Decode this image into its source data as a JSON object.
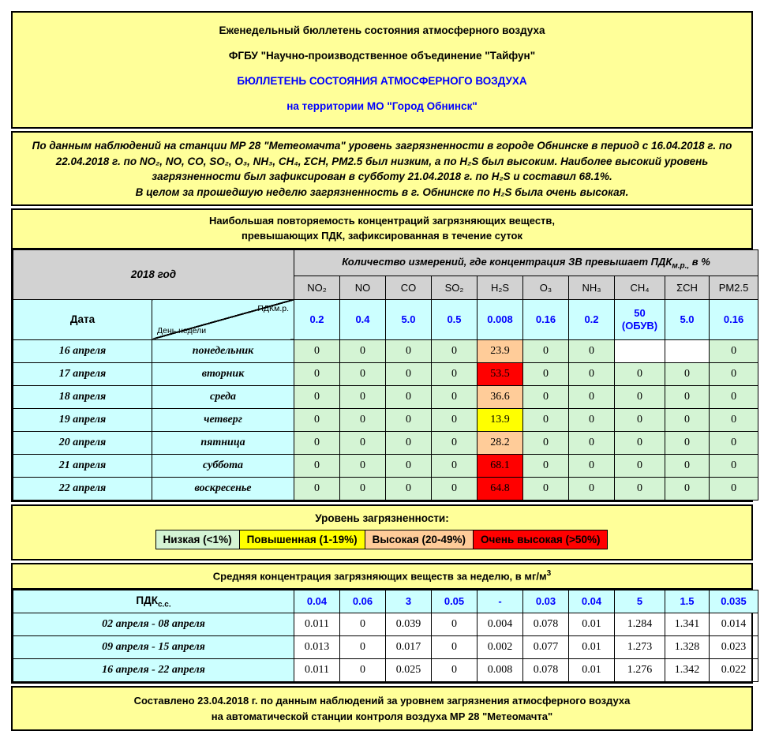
{
  "colors": {
    "page_yellow": "#ffff99",
    "header_gray": "#d2d2d2",
    "label_cyan": "#ccffff",
    "level_low_green": "#d4f4d4",
    "level_elevated_yellow": "#ffff00",
    "level_high_orange": "#ffcc99",
    "level_veryhigh_red": "#ff0000",
    "accent_blue": "#0000ff"
  },
  "header": {
    "line1": "Еженедельный бюллетень состояния атмосферного воздуха",
    "line2": "ФГБУ \"Научно-производственное объединение \"Тайфун\"",
    "line3": "БЮЛЛЕТЕНЬ СОСТОЯНИЯ АТМОСФЕРНОГО ВОЗДУХА",
    "line4": "на территории МО \"Город Обнинск\""
  },
  "summary": {
    "line1": "По данным наблюдений на станции МР 28 \"Метеомачта\" уровень загрязненности в городе Обнинске в период с 16.04.2018 г. по 22.04.2018 г. по NO₂, NO, CO, SO₂, O₃, NH₃, CH₄, ΣCH, PM2.5 был низким, а по H₂S был высоким. Наиболее высокий уровень загрязненности был зафиксирован в субботу 21.04.2018 г. по H₂S и составил 68.1%.",
    "line2": "В целом за прошедшую неделю загрязненность в г. Обнинске по H₂S была очень высокая."
  },
  "table1": {
    "title_line1": "Наибольшая повторяемость концентраций загрязняющих веществ,",
    "title_line2": "превышающих ПДК, зафиксированная в течение суток",
    "year_label": "2018 год",
    "measure_header": {
      "pre": "Количество измерений, где концентрация ЗВ превышает ПДК",
      "sub": "м.р.,",
      "post": " в %"
    },
    "date_label": "Дата",
    "diag_top": "ПДКм.р.",
    "diag_bottom": "День недели",
    "columns": [
      "NO₂",
      "NO",
      "CO",
      "SO₂",
      "H₂S",
      "O₃",
      "NH₃",
      "CH₄",
      "ΣCH",
      "PM2.5"
    ],
    "pdk_values": [
      "0.2",
      "0.4",
      "5.0",
      "0.5",
      "0.008",
      "0.16",
      "0.2",
      "50 (ОБУВ)",
      "5.0",
      "0.16"
    ],
    "rows": [
      {
        "date": "16 апреля",
        "day": "понедельник",
        "values": [
          "0",
          "0",
          "0",
          "0",
          "23.9",
          "0",
          "0",
          "",
          "",
          "0"
        ],
        "levels": [
          "low",
          "low",
          "low",
          "low",
          "high",
          "low",
          "low",
          "none",
          "none",
          "low"
        ]
      },
      {
        "date": "17 апреля",
        "day": "вторник",
        "values": [
          "0",
          "0",
          "0",
          "0",
          "53.5",
          "0",
          "0",
          "0",
          "0",
          "0"
        ],
        "levels": [
          "low",
          "low",
          "low",
          "low",
          "veryhigh",
          "low",
          "low",
          "low",
          "low",
          "low"
        ]
      },
      {
        "date": "18 апреля",
        "day": "среда",
        "values": [
          "0",
          "0",
          "0",
          "0",
          "36.6",
          "0",
          "0",
          "0",
          "0",
          "0"
        ],
        "levels": [
          "low",
          "low",
          "low",
          "low",
          "high",
          "low",
          "low",
          "low",
          "low",
          "low"
        ]
      },
      {
        "date": "19 апреля",
        "day": "четверг",
        "values": [
          "0",
          "0",
          "0",
          "0",
          "13.9",
          "0",
          "0",
          "0",
          "0",
          "0"
        ],
        "levels": [
          "low",
          "low",
          "low",
          "low",
          "elevated",
          "low",
          "low",
          "low",
          "low",
          "low"
        ]
      },
      {
        "date": "20 апреля",
        "day": "пятница",
        "values": [
          "0",
          "0",
          "0",
          "0",
          "28.2",
          "0",
          "0",
          "0",
          "0",
          "0"
        ],
        "levels": [
          "low",
          "low",
          "low",
          "low",
          "high",
          "low",
          "low",
          "low",
          "low",
          "low"
        ]
      },
      {
        "date": "21 апреля",
        "day": "суббота",
        "values": [
          "0",
          "0",
          "0",
          "0",
          "68.1",
          "0",
          "0",
          "0",
          "0",
          "0"
        ],
        "levels": [
          "low",
          "low",
          "low",
          "low",
          "veryhigh",
          "low",
          "low",
          "low",
          "low",
          "low"
        ]
      },
      {
        "date": "22 апреля",
        "day": "воскресенье",
        "values": [
          "0",
          "0",
          "0",
          "0",
          "64.8",
          "0",
          "0",
          "0",
          "0",
          "0"
        ],
        "levels": [
          "low",
          "low",
          "low",
          "low",
          "veryhigh",
          "low",
          "low",
          "low",
          "low",
          "low"
        ]
      }
    ]
  },
  "legend": {
    "title": "Уровень загрязненности:",
    "items": [
      {
        "label": "Низкая (<1%)",
        "level": "low"
      },
      {
        "label": "Повышенная (1-19%)",
        "level": "elevated"
      },
      {
        "label": "Высокая (20-49%)",
        "level": "high"
      },
      {
        "label": "Очень высокая (>50%)",
        "level": "veryhigh"
      }
    ]
  },
  "table2": {
    "title_pre": "Средняя концентрация загрязняющих веществ за неделю, в мг/м",
    "title_sup": "3",
    "pdk_label_base": "ПДК",
    "pdk_label_sub": "с.с.",
    "pdk_values": [
      "0.04",
      "0.06",
      "3",
      "0.05",
      "-",
      "0.03",
      "0.04",
      "5",
      "1.5",
      "0.035"
    ],
    "rows": [
      {
        "period": "02 апреля - 08 апреля",
        "values": [
          "0.011",
          "0",
          "0.039",
          "0",
          "0.004",
          "0.078",
          "0.01",
          "1.284",
          "1.341",
          "0.014"
        ]
      },
      {
        "period": "09 апреля - 15 апреля",
        "values": [
          "0.013",
          "0",
          "0.017",
          "0",
          "0.002",
          "0.077",
          "0.01",
          "1.273",
          "1.328",
          "0.023"
        ]
      },
      {
        "period": "16 апреля - 22 апреля",
        "values": [
          "0.011",
          "0",
          "0.025",
          "0",
          "0.008",
          "0.078",
          "0.01",
          "1.276",
          "1.342",
          "0.022"
        ]
      }
    ]
  },
  "footer": {
    "line1": "Составлено 23.04.2018 г. по данным наблюдений за уровнем загрязнения атмосферного воздуха",
    "line2": "на автоматической станции контроля воздуха МР 28 \"Метеомачта\""
  }
}
